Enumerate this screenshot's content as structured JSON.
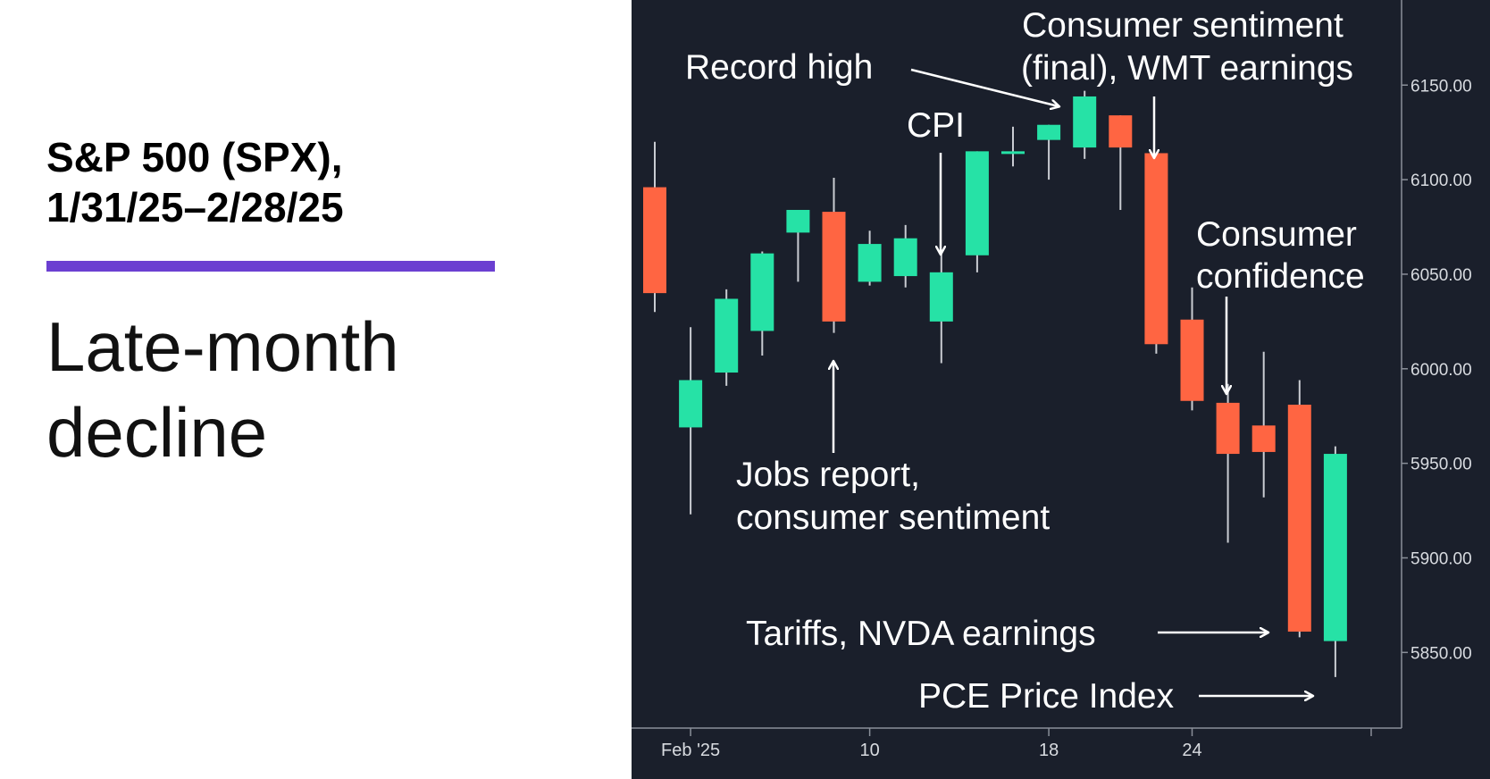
{
  "header": {
    "title": "S&P 500 (SPX),\n1/31/25–2/28/25",
    "subtitle_line1": "Late-month",
    "subtitle_line2": "decline"
  },
  "colors": {
    "background": "#1a1f2b",
    "up": "#26e2a6",
    "down": "#ff6542",
    "text": "#ffffff",
    "axis_text": "#d8dbe0",
    "accent": "#6b3fd1"
  },
  "chart_data": {
    "type": "candlestick",
    "ylim": [
      5810,
      6195
    ],
    "y_ticks": [
      "5850.00",
      "5900.00",
      "5950.00",
      "6000.00",
      "6050.00",
      "6100.00",
      "6150.00"
    ],
    "x_ticks": [
      "Feb '25",
      "10",
      "18",
      "24"
    ],
    "candles": [
      {
        "date": "1/31",
        "open": 6096,
        "high": 6120,
        "low": 6030,
        "close": 6040
      },
      {
        "date": "2/3",
        "open": 5969,
        "high": 6022,
        "low": 5923,
        "close": 5994
      },
      {
        "date": "2/4",
        "open": 5998,
        "high": 6042,
        "low": 5991,
        "close": 6037
      },
      {
        "date": "2/5",
        "open": 6020,
        "high": 6062,
        "low": 6007,
        "close": 6061
      },
      {
        "date": "2/6",
        "open": 6072,
        "high": 6084,
        "low": 6046,
        "close": 6084
      },
      {
        "date": "2/7",
        "open": 6083,
        "high": 6101,
        "low": 6019,
        "close": 6025
      },
      {
        "date": "2/10",
        "open": 6046,
        "high": 6073,
        "low": 6044,
        "close": 6066
      },
      {
        "date": "2/11",
        "open": 6049,
        "high": 6076,
        "low": 6043,
        "close": 6069
      },
      {
        "date": "2/12",
        "open": 6025,
        "high": 6063,
        "low": 6003,
        "close": 6051
      },
      {
        "date": "2/13",
        "open": 6060,
        "high": 6115,
        "low": 6051,
        "close": 6115
      },
      {
        "date": "2/14",
        "open": 6115,
        "high": 6128,
        "low": 6107,
        "close": 6115
      },
      {
        "date": "2/18",
        "open": 6121,
        "high": 6129,
        "low": 6100,
        "close": 6129
      },
      {
        "date": "2/19",
        "open": 6117,
        "high": 6147,
        "low": 6111,
        "close": 6144
      },
      {
        "date": "2/20",
        "open": 6134,
        "high": 6134,
        "low": 6084,
        "close": 6117
      },
      {
        "date": "2/21",
        "open": 6114,
        "high": 6114,
        "low": 6008,
        "close": 6013
      },
      {
        "date": "2/24",
        "open": 6026,
        "high": 6043,
        "low": 5978,
        "close": 5983
      },
      {
        "date": "2/25",
        "open": 5982,
        "high": 5992,
        "low": 5908,
        "close": 5955
      },
      {
        "date": "2/26",
        "open": 5970,
        "high": 6009,
        "low": 5932,
        "close": 5956
      },
      {
        "date": "2/27",
        "open": 5981,
        "high": 5994,
        "low": 5858,
        "close": 5861
      },
      {
        "date": "2/28",
        "open": 5856,
        "high": 5959,
        "low": 5837,
        "close": 5955
      }
    ],
    "annotations": [
      {
        "id": "record",
        "text": "Record high"
      },
      {
        "id": "cpi",
        "text": "CPI"
      },
      {
        "id": "sent1",
        "text": "Consumer sentiment"
      },
      {
        "id": "sent2",
        "text": "(final), WMT earnings"
      },
      {
        "id": "conf1",
        "text": "Consumer"
      },
      {
        "id": "conf2",
        "text": "confidence"
      },
      {
        "id": "jobs1",
        "text": "Jobs report,"
      },
      {
        "id": "jobs2",
        "text": "consumer sentiment"
      },
      {
        "id": "tariffs",
        "text": "Tariffs, NVDA earnings"
      },
      {
        "id": "pce",
        "text": "PCE Price Index"
      }
    ]
  }
}
